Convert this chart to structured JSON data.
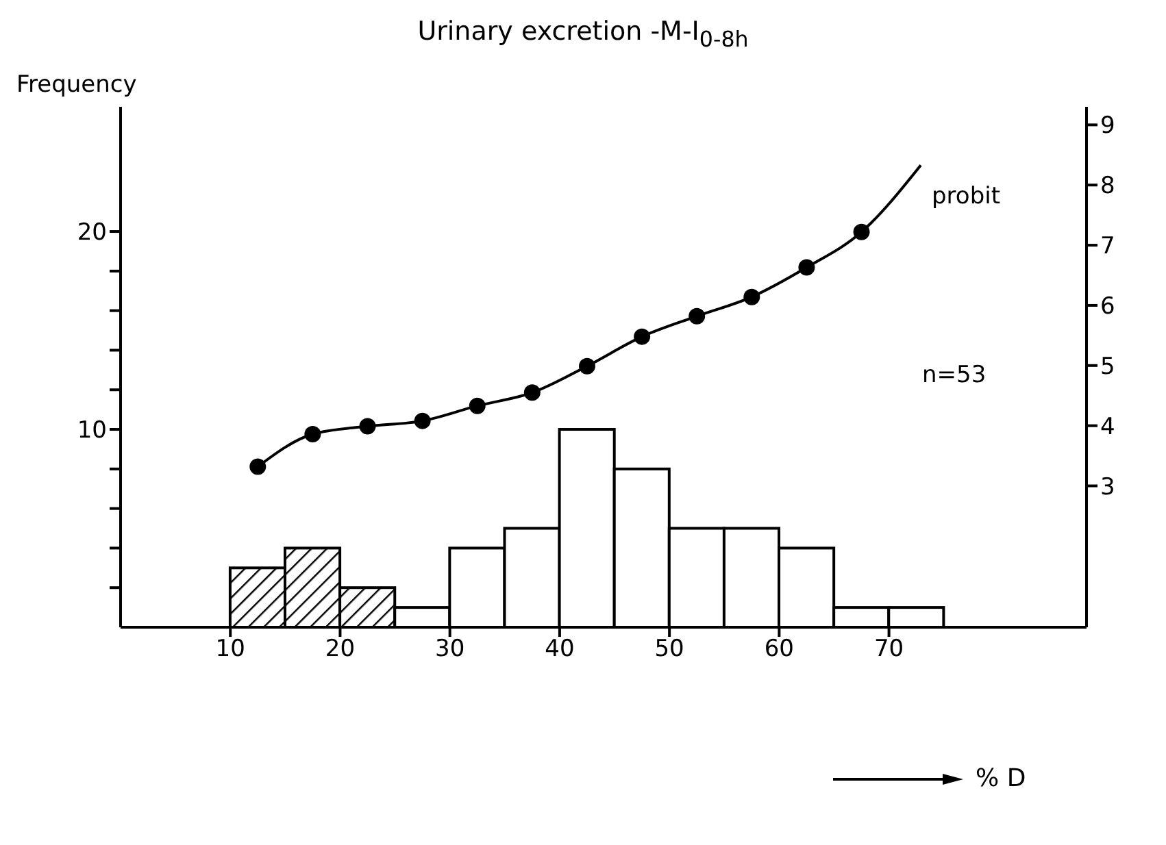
{
  "chart_data": {
    "type": "histogram",
    "title": "Urinary excretion -M-I$_{0-8h}$",
    "ylabel": "Frequency",
    "xlabel": "% D",
    "bins": [
      10,
      15,
      20,
      25,
      30,
      35,
      40,
      45,
      50,
      55,
      60,
      65,
      70,
      75
    ],
    "values": [
      3,
      4,
      2,
      1,
      4,
      5,
      10,
      8,
      5,
      5,
      4,
      1,
      1
    ],
    "colors": [
      "#000000",
      "#000000",
      "#000000",
      "#ffffff",
      "#ffffff",
      "#ffffff",
      "#ffffff",
      "#ffffff",
      "#ffffff",
      "#ffffff",
      "#ffffff",
      "#ffffff",
      "#ffffff"
    ],
    "xlim": [
      0,
      88
    ],
    "xticks": [
      10,
      20,
      30,
      40,
      50,
      60,
      70
    ],
    "ylim": [
      0,
      26.3
    ],
    "yticks": [
      {
        "value": 2,
        "label": null
      },
      {
        "value": 4,
        "label": null
      },
      {
        "value": 6,
        "label": null
      },
      {
        "value": 8,
        "label": null
      },
      10,
      {
        "value": 12,
        "label": null
      },
      {
        "value": 14,
        "label": null
      },
      {
        "value": 16,
        "label": null
      },
      {
        "value": 18,
        "label": null
      },
      20
    ],
    "y2lim": [
      0.65,
      9.3
    ],
    "y2ticks": [
      3,
      4,
      5,
      6,
      7,
      8,
      9
    ],
    "series": [
      {
        "type": "line",
        "name": "probit",
        "axis": "y2",
        "color": "#000000",
        "marker": "none",
        "x": [
          12.5,
          17.5,
          22.5,
          27.5,
          32.5,
          37.5,
          42.5,
          47.5,
          52.5,
          57.5,
          62.5,
          67.5,
          72.9
        ],
        "values": [
          3.32,
          3.86,
          3.99,
          4.08,
          4.33,
          4.55,
          4.99,
          5.48,
          5.82,
          6.14,
          6.63,
          7.22,
          8.33
        ]
      },
      {
        "type": "scatter",
        "axis": "y2",
        "color": "#000000",
        "marker": "circle",
        "x": [
          12.5,
          17.5,
          22.5,
          27.5,
          32.5,
          37.5,
          42.5,
          47.5,
          52.5,
          57.5,
          62.5,
          67.5
        ],
        "values": [
          3.32,
          3.86,
          3.99,
          4.08,
          4.33,
          4.55,
          4.99,
          5.48,
          5.82,
          6.14,
          6.63,
          7.22
        ]
      }
    ],
    "annotations": [
      "n=53"
    ]
  }
}
